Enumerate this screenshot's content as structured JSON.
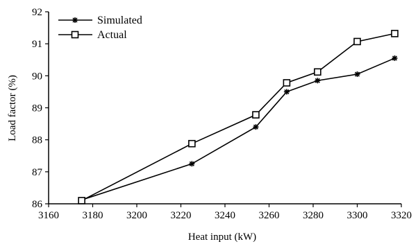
{
  "chart_data": {
    "type": "line",
    "xlabel": "Heat input (kW)",
    "ylabel": "Load factor (%)",
    "xlim": [
      3160,
      3320
    ],
    "ylim": [
      86,
      92
    ],
    "xticks": [
      3160,
      3180,
      3200,
      3220,
      3240,
      3260,
      3280,
      3300,
      3320
    ],
    "yticks": [
      86,
      87,
      88,
      89,
      90,
      91,
      92
    ],
    "grid": false,
    "legend_position": "top-left",
    "series": [
      {
        "name": "Simulated",
        "marker": "asterisk",
        "x": [
          3175,
          3225,
          3254,
          3268,
          3282,
          3300,
          3317
        ],
        "y": [
          86.12,
          87.25,
          88.4,
          89.5,
          89.85,
          90.05,
          90.55
        ]
      },
      {
        "name": "Actual",
        "marker": "square",
        "x": [
          3175,
          3225,
          3254,
          3268,
          3282,
          3300,
          3317
        ],
        "y": [
          86.1,
          87.88,
          88.78,
          89.78,
          90.12,
          91.07,
          91.32
        ]
      }
    ]
  }
}
